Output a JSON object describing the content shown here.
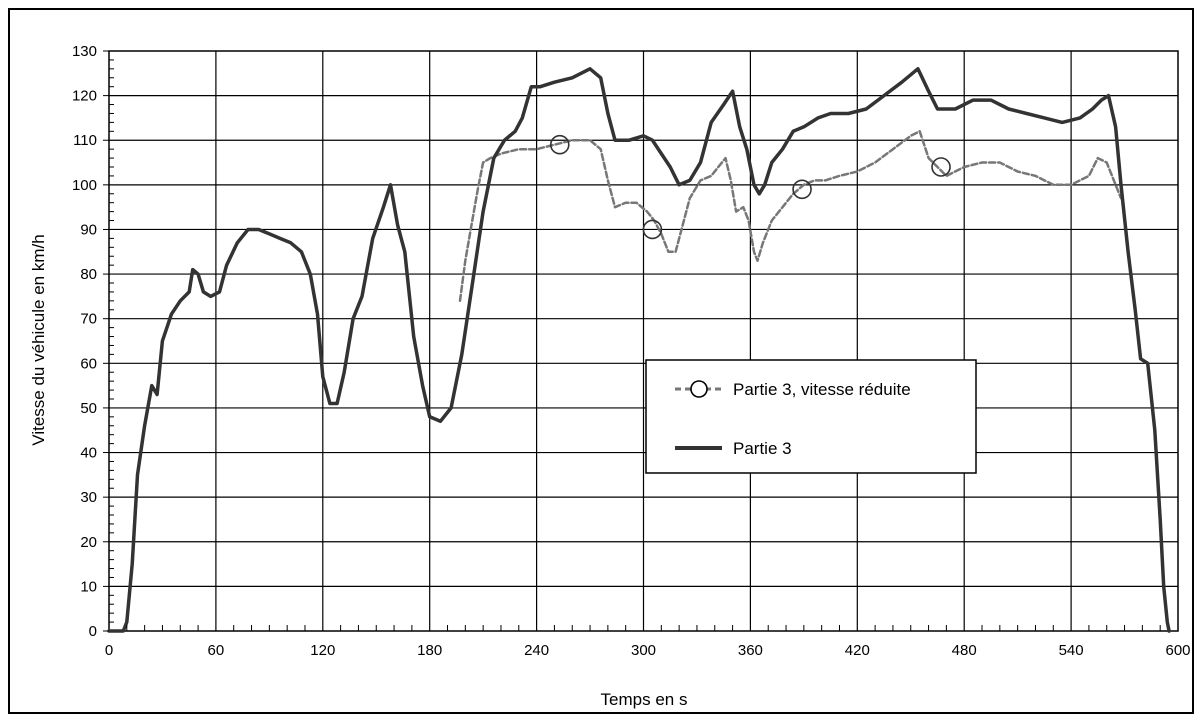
{
  "chart_data": {
    "type": "line",
    "title": "",
    "xlabel": "Temps en s",
    "ylabel": "Vitesse du véhicule en km/h",
    "xlim": [
      0,
      600
    ],
    "ylim": [
      0,
      130
    ],
    "x_ticks": [
      0,
      60,
      120,
      180,
      240,
      300,
      360,
      420,
      480,
      540,
      600
    ],
    "y_ticks": [
      0,
      10,
      20,
      30,
      40,
      50,
      60,
      70,
      80,
      90,
      100,
      110,
      120,
      130
    ],
    "grid": true,
    "legend_position": "center-right",
    "series": [
      {
        "name": "Partie 3, vitesse réduite",
        "color": "#777777",
        "style": "dashed",
        "markers": [
          [
            253,
            109
          ],
          [
            305,
            90
          ],
          [
            389,
            99
          ],
          [
            467,
            104
          ]
        ],
        "points": [
          [
            197,
            74
          ],
          [
            200,
            83
          ],
          [
            203,
            90
          ],
          [
            207,
            99
          ],
          [
            210,
            105
          ],
          [
            214,
            106
          ],
          [
            220,
            107
          ],
          [
            230,
            108
          ],
          [
            240,
            108
          ],
          [
            250,
            109
          ],
          [
            260,
            110
          ],
          [
            270,
            110
          ],
          [
            276,
            108
          ],
          [
            280,
            101
          ],
          [
            284,
            95
          ],
          [
            290,
            96
          ],
          [
            296,
            96
          ],
          [
            302,
            94
          ],
          [
            306,
            92
          ],
          [
            310,
            89
          ],
          [
            314,
            85
          ],
          [
            318,
            85
          ],
          [
            322,
            91
          ],
          [
            326,
            97
          ],
          [
            332,
            101
          ],
          [
            338,
            102
          ],
          [
            342,
            104
          ],
          [
            346,
            106
          ],
          [
            349,
            101
          ],
          [
            352,
            94
          ],
          [
            356,
            95
          ],
          [
            359,
            92
          ],
          [
            362,
            85
          ],
          [
            364,
            83
          ],
          [
            367,
            87
          ],
          [
            372,
            92
          ],
          [
            378,
            95
          ],
          [
            384,
            98
          ],
          [
            390,
            100
          ],
          [
            396,
            101
          ],
          [
            402,
            101
          ],
          [
            410,
            102
          ],
          [
            420,
            103
          ],
          [
            430,
            105
          ],
          [
            440,
            108
          ],
          [
            450,
            111
          ],
          [
            455,
            112
          ],
          [
            460,
            106
          ],
          [
            465,
            104
          ],
          [
            470,
            102
          ],
          [
            480,
            104
          ],
          [
            490,
            105
          ],
          [
            500,
            105
          ],
          [
            510,
            103
          ],
          [
            520,
            102
          ],
          [
            530,
            100
          ],
          [
            540,
            100
          ],
          [
            550,
            102
          ],
          [
            555,
            106
          ],
          [
            560,
            105
          ],
          [
            565,
            100
          ],
          [
            568,
            97
          ]
        ]
      },
      {
        "name": "Partie 3",
        "color": "#333333",
        "style": "solid",
        "points": [
          [
            0,
            0
          ],
          [
            8,
            0
          ],
          [
            10,
            2
          ],
          [
            13,
            15
          ],
          [
            16,
            35
          ],
          [
            20,
            46
          ],
          [
            24,
            55
          ],
          [
            27,
            53
          ],
          [
            30,
            65
          ],
          [
            35,
            71
          ],
          [
            40,
            74
          ],
          [
            45,
            76
          ],
          [
            47,
            81
          ],
          [
            50,
            80
          ],
          [
            53,
            76
          ],
          [
            57,
            75
          ],
          [
            62,
            76
          ],
          [
            66,
            82
          ],
          [
            72,
            87
          ],
          [
            78,
            90
          ],
          [
            84,
            90
          ],
          [
            90,
            89
          ],
          [
            96,
            88
          ],
          [
            102,
            87
          ],
          [
            108,
            85
          ],
          [
            113,
            80
          ],
          [
            117,
            71
          ],
          [
            120,
            57
          ],
          [
            124,
            51
          ],
          [
            128,
            51
          ],
          [
            132,
            58
          ],
          [
            137,
            70
          ],
          [
            142,
            75
          ],
          [
            148,
            88
          ],
          [
            154,
            95
          ],
          [
            158,
            100
          ],
          [
            162,
            91
          ],
          [
            166,
            85
          ],
          [
            171,
            66
          ],
          [
            176,
            55
          ],
          [
            180,
            48
          ],
          [
            186,
            47
          ],
          [
            192,
            50
          ],
          [
            198,
            62
          ],
          [
            204,
            78
          ],
          [
            210,
            94
          ],
          [
            216,
            106
          ],
          [
            222,
            110
          ],
          [
            228,
            112
          ],
          [
            232,
            115
          ],
          [
            237,
            122
          ],
          [
            242,
            122
          ],
          [
            250,
            123
          ],
          [
            260,
            124
          ],
          [
            270,
            126
          ],
          [
            276,
            124
          ],
          [
            280,
            116
          ],
          [
            284,
            110
          ],
          [
            292,
            110
          ],
          [
            300,
            111
          ],
          [
            305,
            110
          ],
          [
            310,
            107
          ],
          [
            315,
            104
          ],
          [
            320,
            100
          ],
          [
            326,
            101
          ],
          [
            332,
            105
          ],
          [
            338,
            114
          ],
          [
            345,
            118
          ],
          [
            350,
            121
          ],
          [
            354,
            113
          ],
          [
            358,
            108
          ],
          [
            362,
            100
          ],
          [
            365,
            98
          ],
          [
            368,
            100
          ],
          [
            372,
            105
          ],
          [
            378,
            108
          ],
          [
            384,
            112
          ],
          [
            390,
            113
          ],
          [
            398,
            115
          ],
          [
            405,
            116
          ],
          [
            415,
            116
          ],
          [
            425,
            117
          ],
          [
            435,
            120
          ],
          [
            445,
            123
          ],
          [
            454,
            126
          ],
          [
            460,
            121
          ],
          [
            465,
            117
          ],
          [
            475,
            117
          ],
          [
            485,
            119
          ],
          [
            495,
            119
          ],
          [
            505,
            117
          ],
          [
            515,
            116
          ],
          [
            525,
            115
          ],
          [
            535,
            114
          ],
          [
            545,
            115
          ],
          [
            552,
            117
          ],
          [
            557,
            119
          ],
          [
            561,
            120
          ],
          [
            565,
            113
          ],
          [
            568,
            100
          ],
          [
            572,
            85
          ],
          [
            576,
            72
          ],
          [
            579,
            61
          ],
          [
            583,
            60
          ],
          [
            587,
            45
          ],
          [
            590,
            25
          ],
          [
            592,
            10
          ],
          [
            594,
            2
          ],
          [
            595,
            0
          ]
        ]
      }
    ]
  }
}
